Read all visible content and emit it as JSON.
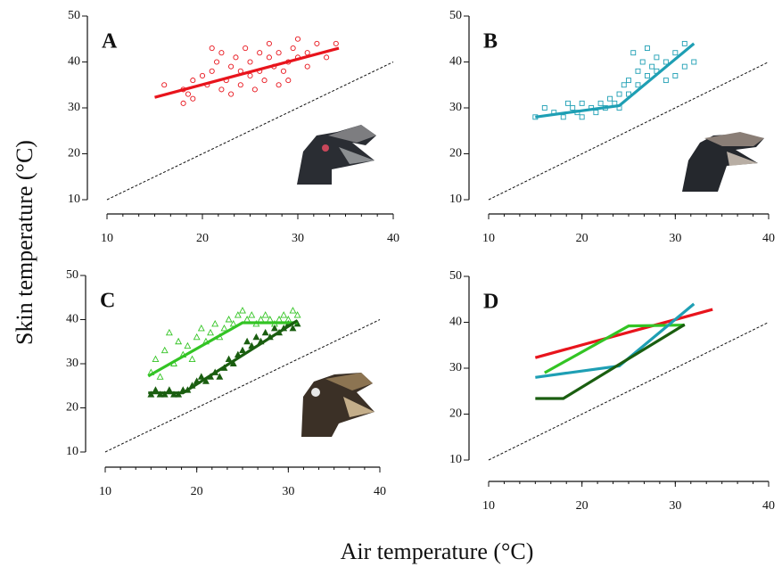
{
  "ylabel": "Skin temperature (°C)",
  "xlabel": "Air temperature (°C)",
  "chart_data": [
    {
      "type": "scatter",
      "label": "A",
      "xlim": [
        10,
        40
      ],
      "ylim": [
        10,
        50
      ],
      "xticks": [
        10,
        20,
        30,
        40
      ],
      "yticks": [
        10,
        20,
        30,
        40,
        50
      ],
      "series": [
        {
          "mode": "markers",
          "marker": "circle",
          "color": "#e8141c",
          "x": [
            16,
            18,
            18,
            18.5,
            19,
            19,
            20,
            20.5,
            21,
            21,
            21.5,
            22,
            22,
            22.5,
            23,
            23,
            23.5,
            24,
            24,
            24.5,
            25,
            25,
            25.5,
            26,
            26,
            26.5,
            27,
            27,
            27.5,
            28,
            28,
            28.5,
            29,
            29,
            29.5,
            30,
            30,
            31,
            31,
            32,
            33,
            34
          ],
          "values": [
            35,
            31,
            34,
            33,
            36,
            32,
            37,
            35,
            43,
            38,
            40,
            34,
            42,
            36,
            39,
            33,
            41,
            35,
            38,
            43,
            37,
            40,
            34,
            42,
            38,
            36,
            41,
            44,
            39,
            35,
            42,
            38,
            40,
            36,
            43,
            41,
            45,
            39,
            42,
            44,
            41,
            44
          ]
        },
        {
          "mode": "line",
          "style": "solid",
          "color": "#e8141c",
          "x": [
            15,
            34.3
          ],
          "values": [
            32.3,
            43
          ]
        },
        {
          "mode": "line",
          "style": "dashed",
          "color": "#111111",
          "x": [
            10,
            40
          ],
          "values": [
            10,
            40
          ]
        }
      ]
    },
    {
      "type": "scatter",
      "label": "B",
      "xlim": [
        10,
        40
      ],
      "ylim": [
        10,
        50
      ],
      "xticks": [
        10,
        20,
        30,
        40
      ],
      "yticks": [
        10,
        20,
        30,
        40,
        50
      ],
      "series": [
        {
          "mode": "markers",
          "marker": "square",
          "color": "#1e9fb4",
          "x": [
            15,
            16,
            17,
            18,
            18.5,
            19,
            19.5,
            20,
            20,
            21,
            21.5,
            22,
            22.5,
            23,
            23.5,
            24,
            24,
            24.5,
            25,
            25,
            25.5,
            26,
            26,
            26.5,
            27,
            27,
            27.5,
            28,
            28,
            29,
            29,
            30,
            30,
            31,
            31,
            32
          ],
          "values": [
            28,
            30,
            29,
            28,
            31,
            30,
            29,
            28,
            31,
            30,
            29,
            31,
            30,
            32,
            31,
            33,
            30,
            35,
            36,
            33,
            42,
            38,
            35,
            40,
            37,
            43,
            39,
            38,
            41,
            36,
            40,
            42,
            37,
            44,
            39,
            40
          ]
        },
        {
          "mode": "line",
          "style": "solid",
          "color": "#1e9fb4",
          "x": [
            15,
            24,
            32
          ],
          "values": [
            28,
            30.5,
            44
          ]
        },
        {
          "mode": "line",
          "style": "dashed",
          "color": "#111111",
          "x": [
            10,
            40
          ],
          "values": [
            10,
            40
          ]
        }
      ]
    },
    {
      "type": "scatter",
      "label": "C",
      "xlim": [
        10,
        40
      ],
      "ylim": [
        10,
        50
      ],
      "xticks": [
        10,
        20,
        30,
        40
      ],
      "yticks": [
        10,
        20,
        30,
        40,
        50
      ],
      "series": [
        {
          "mode": "markers",
          "marker": "triangle",
          "color": "#33c424",
          "x": [
            15,
            15.5,
            16,
            16.5,
            17,
            17.5,
            18,
            18.5,
            19,
            19.5,
            20,
            20.5,
            21,
            21.5,
            22,
            22.5,
            23,
            23.5,
            24,
            24.5,
            25,
            25.5,
            26,
            26.5,
            27,
            27.5,
            28,
            28.5,
            29,
            29.5,
            30,
            30.5,
            31
          ],
          "values": [
            28,
            31,
            27,
            33,
            37,
            30,
            35,
            32,
            34,
            31,
            36,
            38,
            35,
            37,
            39,
            36,
            38,
            40,
            39,
            41,
            42,
            40,
            41,
            39,
            40,
            41,
            40,
            39,
            40,
            41,
            40,
            42,
            41
          ]
        },
        {
          "mode": "markers",
          "marker": "triangle-filled",
          "color": "#1a5e10",
          "x": [
            15,
            15.5,
            16,
            16.5,
            17,
            17.5,
            18,
            18.5,
            19,
            19.5,
            20,
            20.5,
            21,
            21.5,
            22,
            22.5,
            23,
            23.5,
            24,
            24.5,
            25,
            25.5,
            26,
            26.5,
            27,
            27.5,
            28,
            28.5,
            29,
            29.5,
            30,
            30.5,
            31
          ],
          "values": [
            23,
            24,
            23,
            23,
            24,
            23,
            23,
            24,
            24,
            25,
            26,
            27,
            26,
            27,
            28,
            27,
            29,
            31,
            30,
            32,
            33,
            35,
            34,
            36,
            35,
            37,
            36,
            38,
            37,
            38,
            39,
            38,
            39
          ]
        },
        {
          "mode": "line",
          "style": "solid",
          "color": "#33c424",
          "x": [
            14.7,
            25,
            31
          ],
          "values": [
            27.2,
            39.3,
            39.3
          ]
        },
        {
          "mode": "line",
          "style": "solid",
          "color": "#1a5e10",
          "x": [
            14.7,
            18.5,
            31
          ],
          "values": [
            23.4,
            23.4,
            39.8
          ]
        },
        {
          "mode": "line",
          "style": "dashed",
          "color": "#111111",
          "x": [
            10,
            40
          ],
          "values": [
            10,
            40
          ]
        }
      ]
    },
    {
      "type": "line",
      "label": "D",
      "xlim": [
        10,
        40
      ],
      "ylim": [
        10,
        50
      ],
      "xticks": [
        10,
        20,
        30,
        40
      ],
      "yticks": [
        10,
        20,
        30,
        40,
        50
      ],
      "series": [
        {
          "mode": "line",
          "style": "solid",
          "color": "#e8141c",
          "x": [
            15,
            34
          ],
          "values": [
            32.3,
            42.8
          ]
        },
        {
          "mode": "line",
          "style": "solid",
          "color": "#33c424",
          "x": [
            16,
            25,
            31
          ],
          "values": [
            29,
            39.2,
            39.4
          ]
        },
        {
          "mode": "line",
          "style": "solid",
          "color": "#1e9fb4",
          "x": [
            15,
            24,
            32
          ],
          "values": [
            28,
            30.5,
            44
          ]
        },
        {
          "mode": "line",
          "style": "solid",
          "color": "#1a5e10",
          "x": [
            15,
            18,
            31
          ],
          "values": [
            23.4,
            23.4,
            39.5
          ]
        },
        {
          "mode": "line",
          "style": "dashed",
          "color": "#111111",
          "x": [
            10,
            40
          ],
          "values": [
            10,
            40
          ]
        }
      ]
    }
  ]
}
